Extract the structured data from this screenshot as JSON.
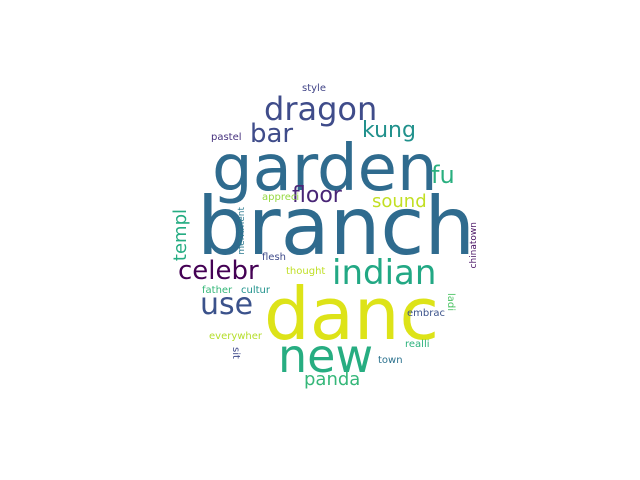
{
  "wordcloud": {
    "words": {
      "branch": {
        "text": "branch",
        "color": "#2f6b8e"
      },
      "garden": {
        "text": "garden",
        "color": "#2f6b8e"
      },
      "danc": {
        "text": "danc",
        "color": "#dde318"
      },
      "new": {
        "text": "new",
        "color": "#27ad81"
      },
      "dragon": {
        "text": "dragon",
        "color": "#3f4c8a"
      },
      "indian": {
        "text": "indian",
        "color": "#22a884"
      },
      "bar": {
        "text": "bar",
        "color": "#3f4c8a"
      },
      "kung": {
        "text": "kung",
        "color": "#21918c"
      },
      "fu": {
        "text": "fu",
        "color": "#29af7f"
      },
      "floor": {
        "text": "floor",
        "color": "#482576"
      },
      "sound": {
        "text": "sound",
        "color": "#c2df23"
      },
      "celebr": {
        "text": "celebr",
        "color": "#440154"
      },
      "use": {
        "text": "use",
        "color": "#3b528b"
      },
      "panda": {
        "text": "panda",
        "color": "#35b779"
      },
      "templ": {
        "text": "templ",
        "color": "#25ac82"
      },
      "style": {
        "text": "style",
        "color": "#414487"
      },
      "pastel": {
        "text": "pastel",
        "color": "#46327e"
      },
      "appreci": {
        "text": "appreci",
        "color": "#95d840"
      },
      "merriment": {
        "text": "merriment",
        "color": "#2a788e"
      },
      "flesh": {
        "text": "flesh",
        "color": "#3e4a89"
      },
      "thought": {
        "text": "thought",
        "color": "#c0df25"
      },
      "father": {
        "text": "father",
        "color": "#35b779"
      },
      "cultur": {
        "text": "cultur",
        "color": "#20928c"
      },
      "chinatown": {
        "text": "chinatown",
        "color": "#471063"
      },
      "ladi": {
        "text": "ladi",
        "color": "#52c569"
      },
      "embrac": {
        "text": "embrac",
        "color": "#3b528b"
      },
      "everywher": {
        "text": "everywher",
        "color": "#b5de2b"
      },
      "realli": {
        "text": "realli",
        "color": "#2db27d"
      },
      "sit": {
        "text": "sit",
        "color": "#3e4989"
      },
      "town": {
        "text": "town",
        "color": "#2c728e"
      }
    }
  }
}
